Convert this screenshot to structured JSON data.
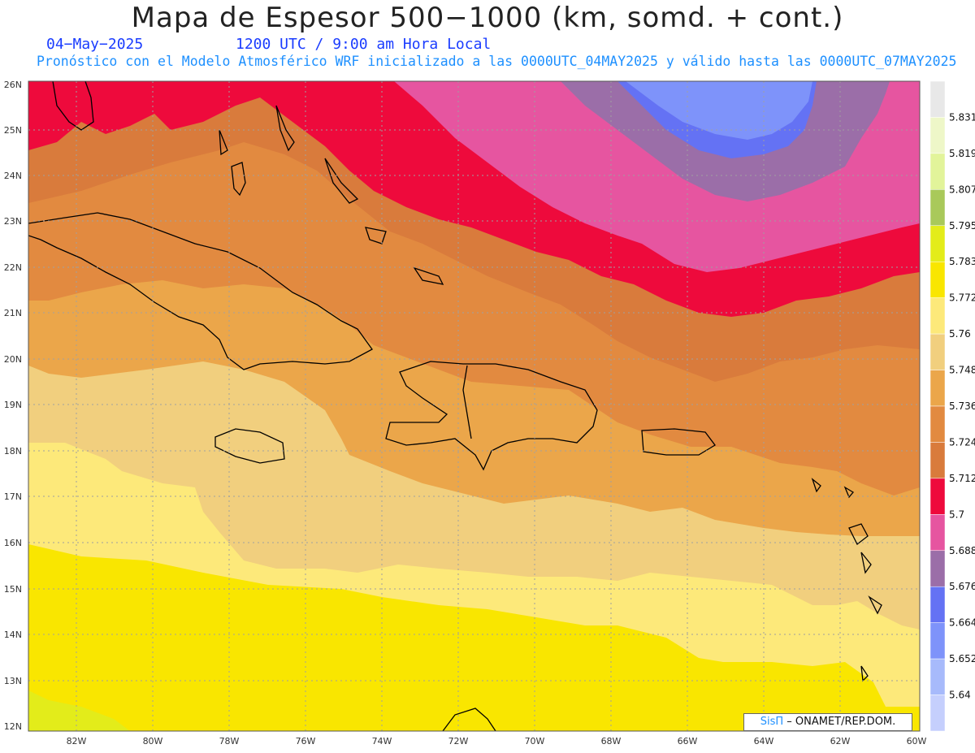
{
  "header": {
    "title": "Mapa de Espesor 500−1000 (km, somd. + cont.)",
    "date": "04−May−2025",
    "time": "1200 UTC / 9:00 am Hora Local",
    "subtitle": "Pronóstico con el Modelo Atmosférico WRF inicializado a las 0000UTC_04MAY2025 y válido hasta las  0000UTC_07MAY2025"
  },
  "map": {
    "lat_labels": [
      "26N",
      "25N",
      "24N",
      "23N",
      "22N",
      "21N",
      "20N",
      "19N",
      "18N",
      "17N",
      "16N",
      "15N",
      "14N",
      "13N",
      "12N"
    ],
    "lon_labels": [
      "82W",
      "80W",
      "78W",
      "76W",
      "74W",
      "72W",
      "70W",
      "68W",
      "66W",
      "64W",
      "62W",
      "60W"
    ],
    "lon_range": [
      -83.2,
      -60.0
    ],
    "lat_range": [
      11.9,
      26.0
    ],
    "grid": true
  },
  "colorbar": {
    "labels": [
      "5.831",
      "5.819",
      "5.807",
      "5.795",
      "5.783",
      "5.772",
      "5.76",
      "5.748",
      "5.736",
      "5.724",
      "5.712",
      "5.7",
      "5.688",
      "5.676",
      "5.664",
      "5.652",
      "5.64"
    ],
    "colors": [
      "#e8e8e8",
      "#eef7c8",
      "#e2f49a",
      "#a9c95a",
      "#e3ec1a",
      "#f9e600",
      "#fde97a",
      "#f1cf7e",
      "#eba64a",
      "#e28a40",
      "#d97b3c",
      "#ee0a3c",
      "#e655a0",
      "#9b6ea8",
      "#6472f4",
      "#7e93fa",
      "#a7bafb",
      "#c5cffd"
    ]
  },
  "credit": {
    "brand": "SisΠ",
    "text": " – ONAMET/REP.DOM."
  }
}
